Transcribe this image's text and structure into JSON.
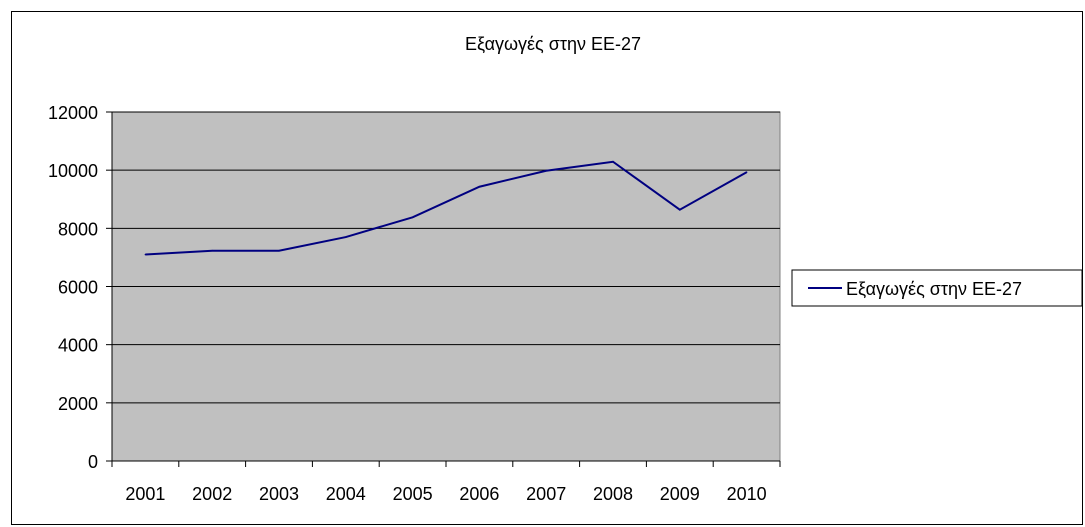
{
  "chart_data": {
    "type": "line",
    "title": "Εξαγωγές στην ΕΕ-27",
    "categories": [
      "2001",
      "2002",
      "2003",
      "2004",
      "2005",
      "2006",
      "2007",
      "2008",
      "2009",
      "2010"
    ],
    "series": [
      {
        "name": "Εξαγωγές στην ΕΕ-27",
        "values": [
          7100,
          7230,
          7230,
          7700,
          8380,
          9430,
          9980,
          10290,
          8640,
          9930
        ],
        "color": "#000080"
      }
    ],
    "ylim": [
      0,
      12000
    ],
    "yticks": [
      0,
      2000,
      4000,
      6000,
      8000,
      10000,
      12000
    ],
    "grid": true,
    "plot_background": "#c0c0c0",
    "legend_position": "right"
  }
}
